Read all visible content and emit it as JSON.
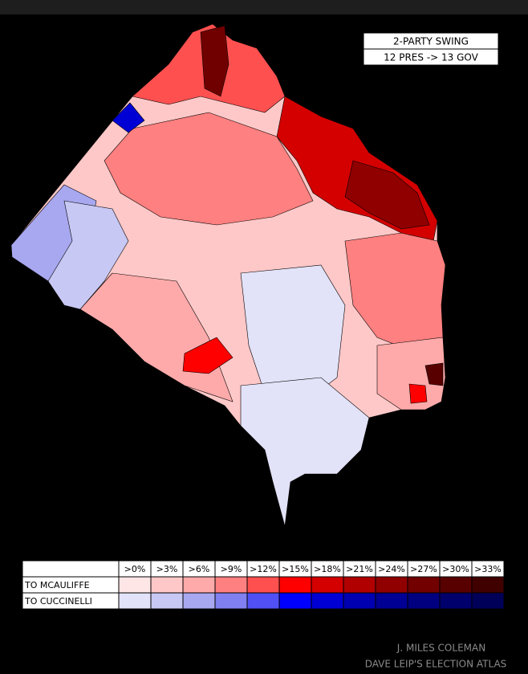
{
  "title_box": {
    "lines": [
      "2-PARTY SWING",
      "12 PRES -> 13 GOV"
    ]
  },
  "legend": {
    "headers": [
      ">0%",
      ">3%",
      ">6%",
      ">9%",
      ">12%",
      ">15%",
      ">18%",
      ">21%",
      ">24%",
      ">27%",
      ">30%",
      ">33%"
    ],
    "rows": [
      {
        "label": "TO MCAULIFFE",
        "colors": [
          "#ffe6e6",
          "#ffc8c8",
          "#ffaaaa",
          "#ff8080",
          "#ff5050",
          "#ff0000",
          "#d40000",
          "#b00000",
          "#900000",
          "#720000",
          "#580000",
          "#400000"
        ]
      },
      {
        "label": "TO CUCCINELLI",
        "colors": [
          "#e2e2f8",
          "#c8c8f4",
          "#a8a8f0",
          "#8080f0",
          "#5050f4",
          "#0000ff",
          "#0000d4",
          "#0000b0",
          "#000094",
          "#000080",
          "#00006c",
          "#000058"
        ]
      }
    ]
  },
  "credits": [
    "J. MILES COLEMAN",
    "DAVE LEIP'S ELECTION ATLAS"
  ]
}
